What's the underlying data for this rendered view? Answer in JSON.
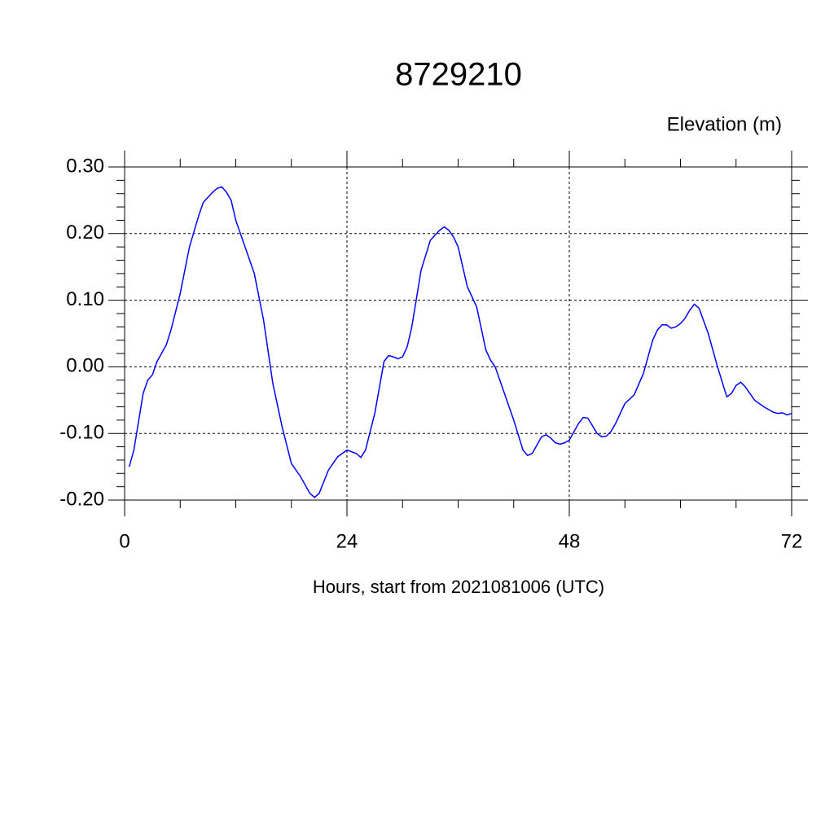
{
  "chart_data": {
    "type": "line",
    "title": "8729210",
    "ylabel": "Elevation (m)",
    "xlabel": "Hours, start from 2021081006 (UTC)",
    "xlim": [
      0,
      72
    ],
    "xticks": [
      0,
      24,
      48,
      72
    ],
    "ylim": [
      -0.2,
      0.3
    ],
    "yticks": [
      {
        "value": -0.2,
        "label": "-0.20"
      },
      {
        "value": -0.1,
        "label": "-0.10"
      },
      {
        "value": 0,
        "label": "0.00"
      },
      {
        "value": 0.1,
        "label": "0.10"
      },
      {
        "value": 0.2,
        "label": "0.20"
      },
      {
        "value": 0.3,
        "label": "0.30"
      }
    ],
    "grid": true,
    "series": [
      {
        "color": "#0000ff",
        "x": [
          0.5,
          1,
          2,
          2.5,
          3,
          3.5,
          4.5,
          5,
          6,
          7,
          8,
          8.5,
          9.5,
          10,
          10.5,
          11,
          11.5,
          12,
          13,
          14,
          15,
          16,
          17,
          18,
          19,
          20,
          20.5,
          21,
          22,
          23,
          24,
          25,
          25.5,
          26,
          27,
          28,
          28.5,
          29,
          29.5,
          30,
          30.5,
          31,
          32,
          33,
          34,
          34.5,
          35,
          35.5,
          36,
          37,
          38,
          39,
          39.5,
          40,
          41,
          42,
          43,
          43.5,
          44,
          45,
          45.5,
          46,
          46.5,
          47,
          47.5,
          48,
          49,
          49.5,
          50,
          51,
          51.5,
          52,
          52.5,
          53,
          54,
          55,
          56,
          57,
          57.5,
          58,
          58.5,
          59,
          59.5,
          60,
          60.5,
          61,
          61.5,
          62,
          63,
          64,
          65,
          65.5,
          66,
          66.5,
          67,
          68,
          69,
          70,
          70.5,
          71,
          71.5,
          72
        ],
        "values": [
          -0.15,
          -0.125,
          -0.04,
          -0.02,
          -0.012,
          0.008,
          0.033,
          0.055,
          0.11,
          0.18,
          0.227,
          0.247,
          0.262,
          0.268,
          0.27,
          0.262,
          0.25,
          0.22,
          0.18,
          0.14,
          0.07,
          -0.025,
          -0.09,
          -0.145,
          -0.165,
          -0.19,
          -0.196,
          -0.19,
          -0.155,
          -0.135,
          -0.125,
          -0.13,
          -0.136,
          -0.125,
          -0.07,
          0.008,
          0.017,
          0.015,
          0.012,
          0.015,
          0.03,
          0.06,
          0.145,
          0.19,
          0.205,
          0.21,
          0.205,
          0.195,
          0.18,
          0.12,
          0.09,
          0.025,
          0.01,
          0.0,
          -0.04,
          -0.08,
          -0.125,
          -0.133,
          -0.13,
          -0.105,
          -0.102,
          -0.107,
          -0.114,
          -0.116,
          -0.114,
          -0.11,
          -0.085,
          -0.076,
          -0.077,
          -0.1,
          -0.105,
          -0.104,
          -0.097,
          -0.085,
          -0.055,
          -0.042,
          -0.01,
          0.04,
          0.055,
          0.063,
          0.063,
          0.058,
          0.06,
          0.065,
          0.073,
          0.085,
          0.094,
          0.088,
          0.05,
          0.0,
          -0.045,
          -0.04,
          -0.028,
          -0.023,
          -0.03,
          -0.05,
          -0.06,
          -0.068,
          -0.07,
          -0.069,
          -0.072,
          -0.07
        ]
      }
    ]
  }
}
